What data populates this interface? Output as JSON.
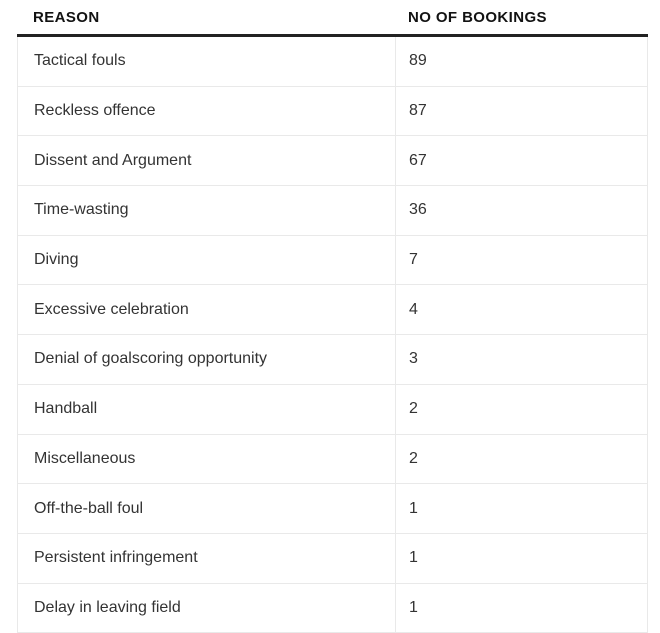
{
  "table": {
    "headers": {
      "reason": "REASON",
      "bookings": "NO OF BOOKINGS"
    },
    "rows": [
      {
        "reason": "Tactical fouls",
        "bookings": "89"
      },
      {
        "reason": "Reckless offence",
        "bookings": "87"
      },
      {
        "reason": "Dissent and Argument",
        "bookings": "67"
      },
      {
        "reason": "Time-wasting",
        "bookings": "36"
      },
      {
        "reason": "Diving",
        "bookings": "7"
      },
      {
        "reason": "Excessive celebration",
        "bookings": "4"
      },
      {
        "reason": "Denial of goalscoring opportunity",
        "bookings": "3"
      },
      {
        "reason": "Handball",
        "bookings": "2"
      },
      {
        "reason": "Miscellaneous",
        "bookings": "2"
      },
      {
        "reason": "Off-the-ball foul",
        "bookings": "1"
      },
      {
        "reason": "Persistent infringement",
        "bookings": "1"
      },
      {
        "reason": "Delay in leaving field",
        "bookings": "1"
      }
    ],
    "colors": {
      "header_text": "#121212",
      "body_text": "#333333",
      "header_rule": "#222222",
      "separator": "#e9e9e9",
      "background": "#ffffff"
    }
  },
  "chart_data": {
    "type": "table",
    "title": "",
    "columns": [
      "REASON",
      "NO OF BOOKINGS"
    ],
    "categories": [
      "Tactical fouls",
      "Reckless offence",
      "Dissent and Argument",
      "Time-wasting",
      "Diving",
      "Excessive celebration",
      "Denial of goalscoring opportunity",
      "Handball",
      "Miscellaneous",
      "Off-the-ball foul",
      "Persistent infringement",
      "Delay in leaving field"
    ],
    "values": [
      89,
      87,
      67,
      36,
      7,
      4,
      3,
      2,
      2,
      1,
      1,
      1
    ]
  }
}
